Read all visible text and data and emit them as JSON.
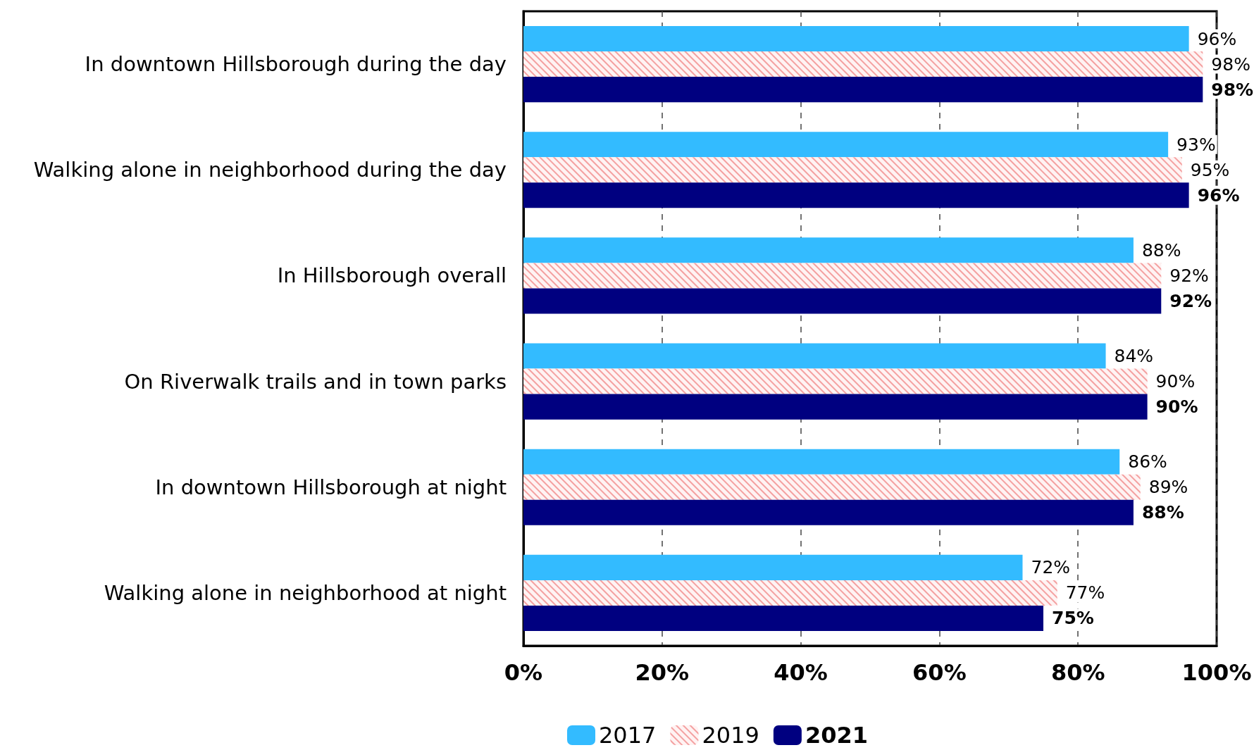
{
  "chart_data": {
    "type": "bar",
    "orientation": "horizontal",
    "categories": [
      "In downtown Hillsborough during the day",
      "Walking alone in neighborhood during the day",
      "In Hillsborough overall",
      "On Riverwalk trails and in town parks",
      "In downtown Hillsborough at night",
      "Walking alone in neighborhood at night"
    ],
    "series": [
      {
        "name": "2017",
        "color": "#33bbff",
        "values": [
          96,
          93,
          88,
          84,
          86,
          72
        ],
        "value_labels": [
          "96%",
          "93%",
          "88%",
          "84%",
          "86%",
          "72%"
        ]
      },
      {
        "name": "2019",
        "color": "#f4a0a0",
        "values": [
          98,
          95,
          92,
          90,
          89,
          77
        ],
        "value_labels": [
          "98%",
          "95%",
          "92%",
          "90%",
          "89%",
          "77%"
        ]
      },
      {
        "name": "2021",
        "color": "#000080",
        "values": [
          98,
          96,
          92,
          90,
          88,
          75
        ],
        "value_labels": [
          "98%",
          "96%",
          "92%",
          "90%",
          "88%",
          "75%"
        ]
      }
    ],
    "xlim": [
      0,
      100
    ],
    "xticks": [
      {
        "value": 0,
        "label": "0%"
      },
      {
        "value": 20,
        "label": "20%"
      },
      {
        "value": 40,
        "label": "40%"
      },
      {
        "value": 60,
        "label": "60%"
      },
      {
        "value": 80,
        "label": "80%"
      },
      {
        "value": 100,
        "label": "100%"
      }
    ],
    "grid": "x",
    "legend": "bottom"
  }
}
